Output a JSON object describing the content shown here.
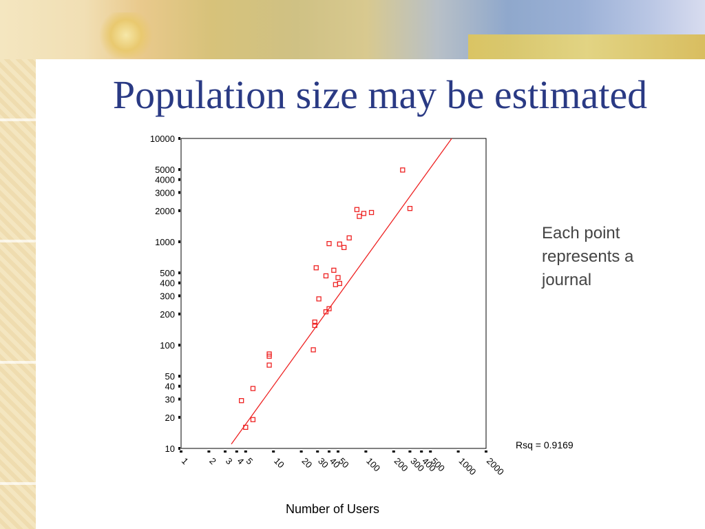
{
  "slide": {
    "title": "Population size may be estimated",
    "note_lines": [
      "Each point",
      "represents a",
      "journal"
    ]
  },
  "chart_data": {
    "type": "scatter",
    "title": "",
    "xlabel": "Number of Users",
    "ylabel": "",
    "x_scale": "log",
    "y_scale": "log",
    "xlim": [
      1,
      2000
    ],
    "ylim": [
      10,
      10000
    ],
    "x_ticks": [
      1,
      2,
      3,
      4,
      5,
      10,
      20,
      30,
      40,
      50,
      100,
      200,
      300,
      400,
      500,
      1000,
      2000
    ],
    "y_ticks": [
      10,
      20,
      30,
      40,
      50,
      100,
      200,
      300,
      400,
      500,
      1000,
      2000,
      3000,
      4000,
      5000,
      10000
    ],
    "annotation": "Rsq = 0.9169",
    "fit_line": {
      "from": [
        3.5,
        11
      ],
      "to": [
        850,
        10000
      ]
    },
    "points": [
      [
        4.5,
        29
      ],
      [
        5,
        16
      ],
      [
        6,
        38
      ],
      [
        6,
        19
      ],
      [
        9,
        82
      ],
      [
        9,
        78
      ],
      [
        9,
        64
      ],
      [
        27,
        90
      ],
      [
        28,
        167
      ],
      [
        28,
        155
      ],
      [
        29,
        560
      ],
      [
        31,
        280
      ],
      [
        37,
        468
      ],
      [
        37,
        210
      ],
      [
        40,
        225
      ],
      [
        40,
        960
      ],
      [
        45,
        530
      ],
      [
        47,
        385
      ],
      [
        50,
        450
      ],
      [
        52,
        395
      ],
      [
        52,
        950
      ],
      [
        58,
        880
      ],
      [
        66,
        1090
      ],
      [
        80,
        2050
      ],
      [
        85,
        1760
      ],
      [
        95,
        1880
      ],
      [
        115,
        1920
      ],
      [
        250,
        4950
      ],
      [
        300,
        2100
      ]
    ],
    "marker_color": "#ee2222",
    "line_color": "#ee2222"
  }
}
